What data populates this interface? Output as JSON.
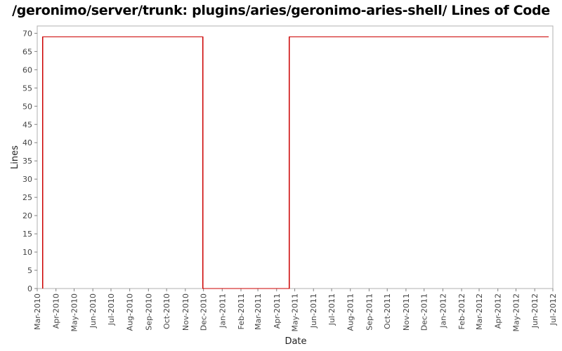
{
  "chart_data": {
    "type": "line",
    "title": "/geronimo/server/trunk: plugins/aries/geronimo-aries-shell/ Lines of Code",
    "xlabel": "Date",
    "ylabel": "Lines",
    "ylim": [
      0,
      72
    ],
    "yticks": [
      0,
      5,
      10,
      15,
      20,
      25,
      30,
      35,
      40,
      45,
      50,
      55,
      60,
      65,
      70
    ],
    "xlim": [
      "2010-03-01",
      "2012-07-01"
    ],
    "xticks": [
      {
        "date": "2010-03-01",
        "label": "Mar-2010"
      },
      {
        "date": "2010-04-01",
        "label": "Apr-2010"
      },
      {
        "date": "2010-05-01",
        "label": "May-2010"
      },
      {
        "date": "2010-06-01",
        "label": "Jun-2010"
      },
      {
        "date": "2010-07-01",
        "label": "Jul-2010"
      },
      {
        "date": "2010-08-01",
        "label": "Aug-2010"
      },
      {
        "date": "2010-09-01",
        "label": "Sep-2010"
      },
      {
        "date": "2010-10-01",
        "label": "Oct-2010"
      },
      {
        "date": "2010-11-01",
        "label": "Nov-2010"
      },
      {
        "date": "2010-12-01",
        "label": "Dec-2010"
      },
      {
        "date": "2011-01-01",
        "label": "Jan-2011"
      },
      {
        "date": "2011-02-01",
        "label": "Feb-2011"
      },
      {
        "date": "2011-03-01",
        "label": "Mar-2011"
      },
      {
        "date": "2011-04-01",
        "label": "Apr-2011"
      },
      {
        "date": "2011-05-01",
        "label": "May-2011"
      },
      {
        "date": "2011-06-01",
        "label": "Jun-2011"
      },
      {
        "date": "2011-07-01",
        "label": "Jul-2011"
      },
      {
        "date": "2011-08-01",
        "label": "Aug-2011"
      },
      {
        "date": "2011-09-01",
        "label": "Sep-2011"
      },
      {
        "date": "2011-10-01",
        "label": "Oct-2011"
      },
      {
        "date": "2011-11-01",
        "label": "Nov-2011"
      },
      {
        "date": "2011-12-01",
        "label": "Dec-2011"
      },
      {
        "date": "2012-01-01",
        "label": "Jan-2012"
      },
      {
        "date": "2012-02-01",
        "label": "Feb-2012"
      },
      {
        "date": "2012-03-01",
        "label": "Mar-2012"
      },
      {
        "date": "2012-04-01",
        "label": "Apr-2012"
      },
      {
        "date": "2012-05-01",
        "label": "May-2012"
      },
      {
        "date": "2012-06-01",
        "label": "Jun-2012"
      },
      {
        "date": "2012-07-01",
        "label": "Jul-2012"
      }
    ],
    "series": [
      {
        "color": "#cc0000",
        "points": [
          {
            "x": "2010-03-10",
            "y": 0
          },
          {
            "x": "2010-03-10",
            "y": 69
          },
          {
            "x": "2010-11-30",
            "y": 69
          },
          {
            "x": "2010-11-30",
            "y": 0
          },
          {
            "x": "2011-04-22",
            "y": 0
          },
          {
            "x": "2011-04-22",
            "y": 69
          },
          {
            "x": "2012-06-24",
            "y": 69
          }
        ]
      }
    ],
    "grid": false,
    "legend": "none"
  }
}
